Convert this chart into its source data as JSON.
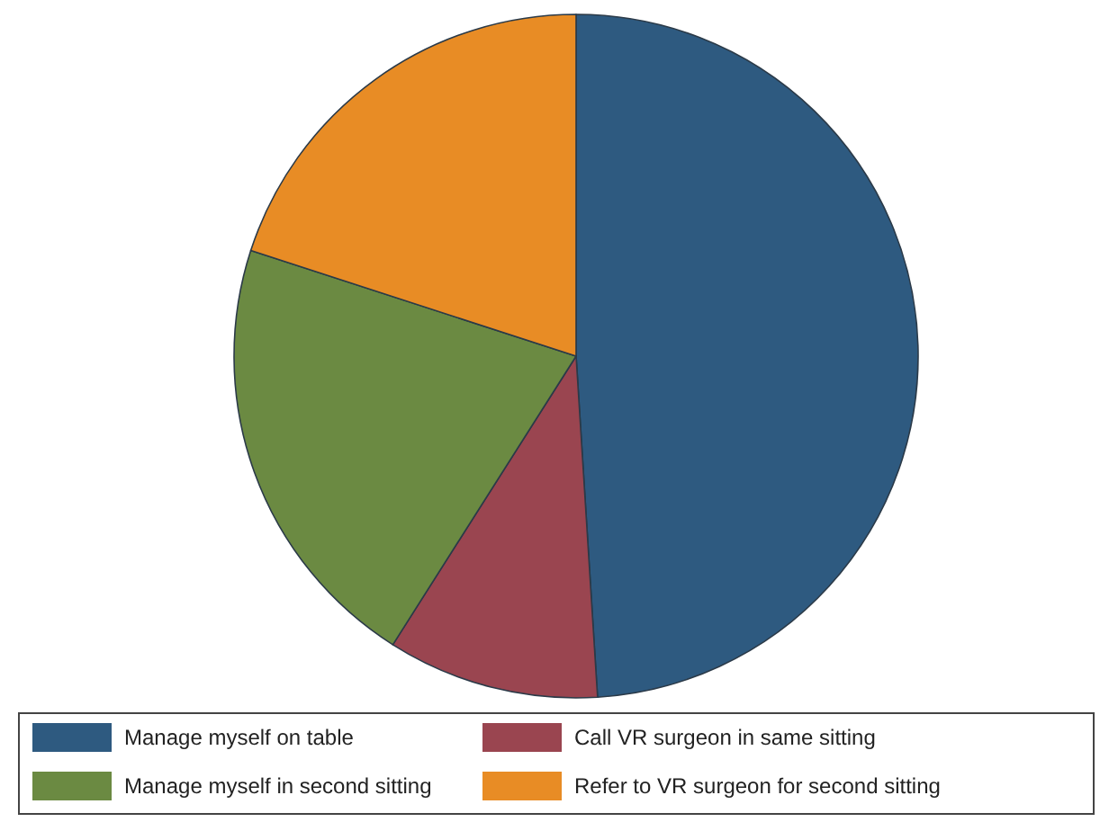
{
  "chart_data": {
    "type": "pie",
    "categories": [
      "Manage myself on table",
      "Call VR surgeon in same sitting",
      "Manage myself in second sitting",
      "Refer to VR surgeon for second sitting"
    ],
    "values": [
      49,
      10,
      21,
      20
    ],
    "colors": [
      "#2e5a80",
      "#9a4550",
      "#6b8a42",
      "#e88c25"
    ],
    "legend": "bottom"
  }
}
